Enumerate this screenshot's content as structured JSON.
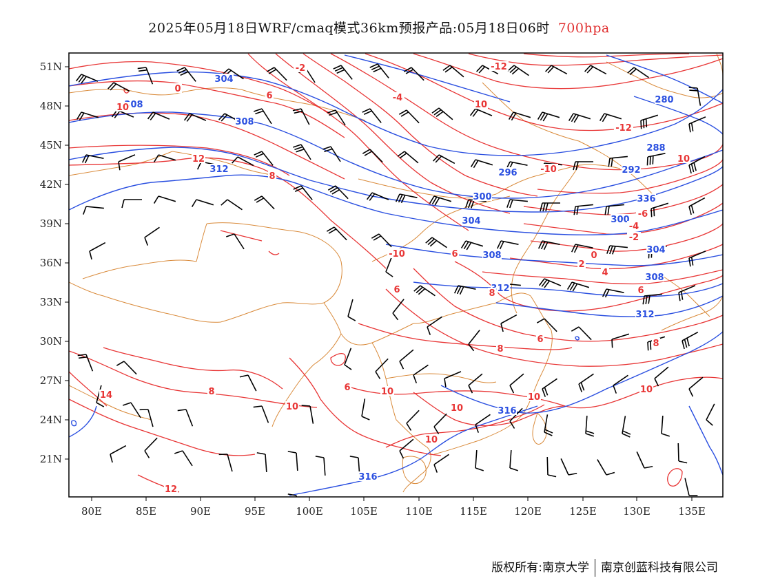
{
  "title": {
    "main": "2025年05月18日WRF/cmaq模式36km预报产品:05月18日06时",
    "level": "700hpa"
  },
  "footer": {
    "copyright": "版权所有:南京大学",
    "company": "南京创蓝科技有限公司"
  },
  "colors": {
    "height_contour": "#2a4fe0",
    "temperature_contour": "#e83535",
    "border": "#d98a3a",
    "wind": "#000000"
  },
  "axes": {
    "lon_labels": [
      "80E",
      "85E",
      "90E",
      "95E",
      "100E",
      "105E",
      "110E",
      "115E",
      "120E",
      "125E",
      "130E",
      "135E"
    ],
    "lat_labels": [
      "51N",
      "48N",
      "45N",
      "42N",
      "39N",
      "36N",
      "33N",
      "30N",
      "27N",
      "24N",
      "21N"
    ]
  },
  "height_labels": [
    "304",
    "308",
    "308",
    "312",
    "280",
    "288",
    "292",
    "296",
    "300",
    "300",
    "304",
    "308",
    "304",
    "308",
    "312",
    "312",
    "316",
    "316",
    "336"
  ],
  "temperature_labels": [
    "-2",
    "0",
    "6",
    "10",
    "-4",
    "12",
    "8",
    "10",
    "-12",
    "10",
    "-10",
    "-12",
    "-10",
    "-6",
    "-4",
    "-2",
    "0",
    "2",
    "4",
    "6",
    "6",
    "6",
    "8",
    "6",
    "8",
    "10",
    "10",
    "10",
    "14",
    "8",
    "6",
    "10",
    "10",
    "12",
    "10",
    "8"
  ],
  "icons": [
    "wind-barb-icon"
  ]
}
